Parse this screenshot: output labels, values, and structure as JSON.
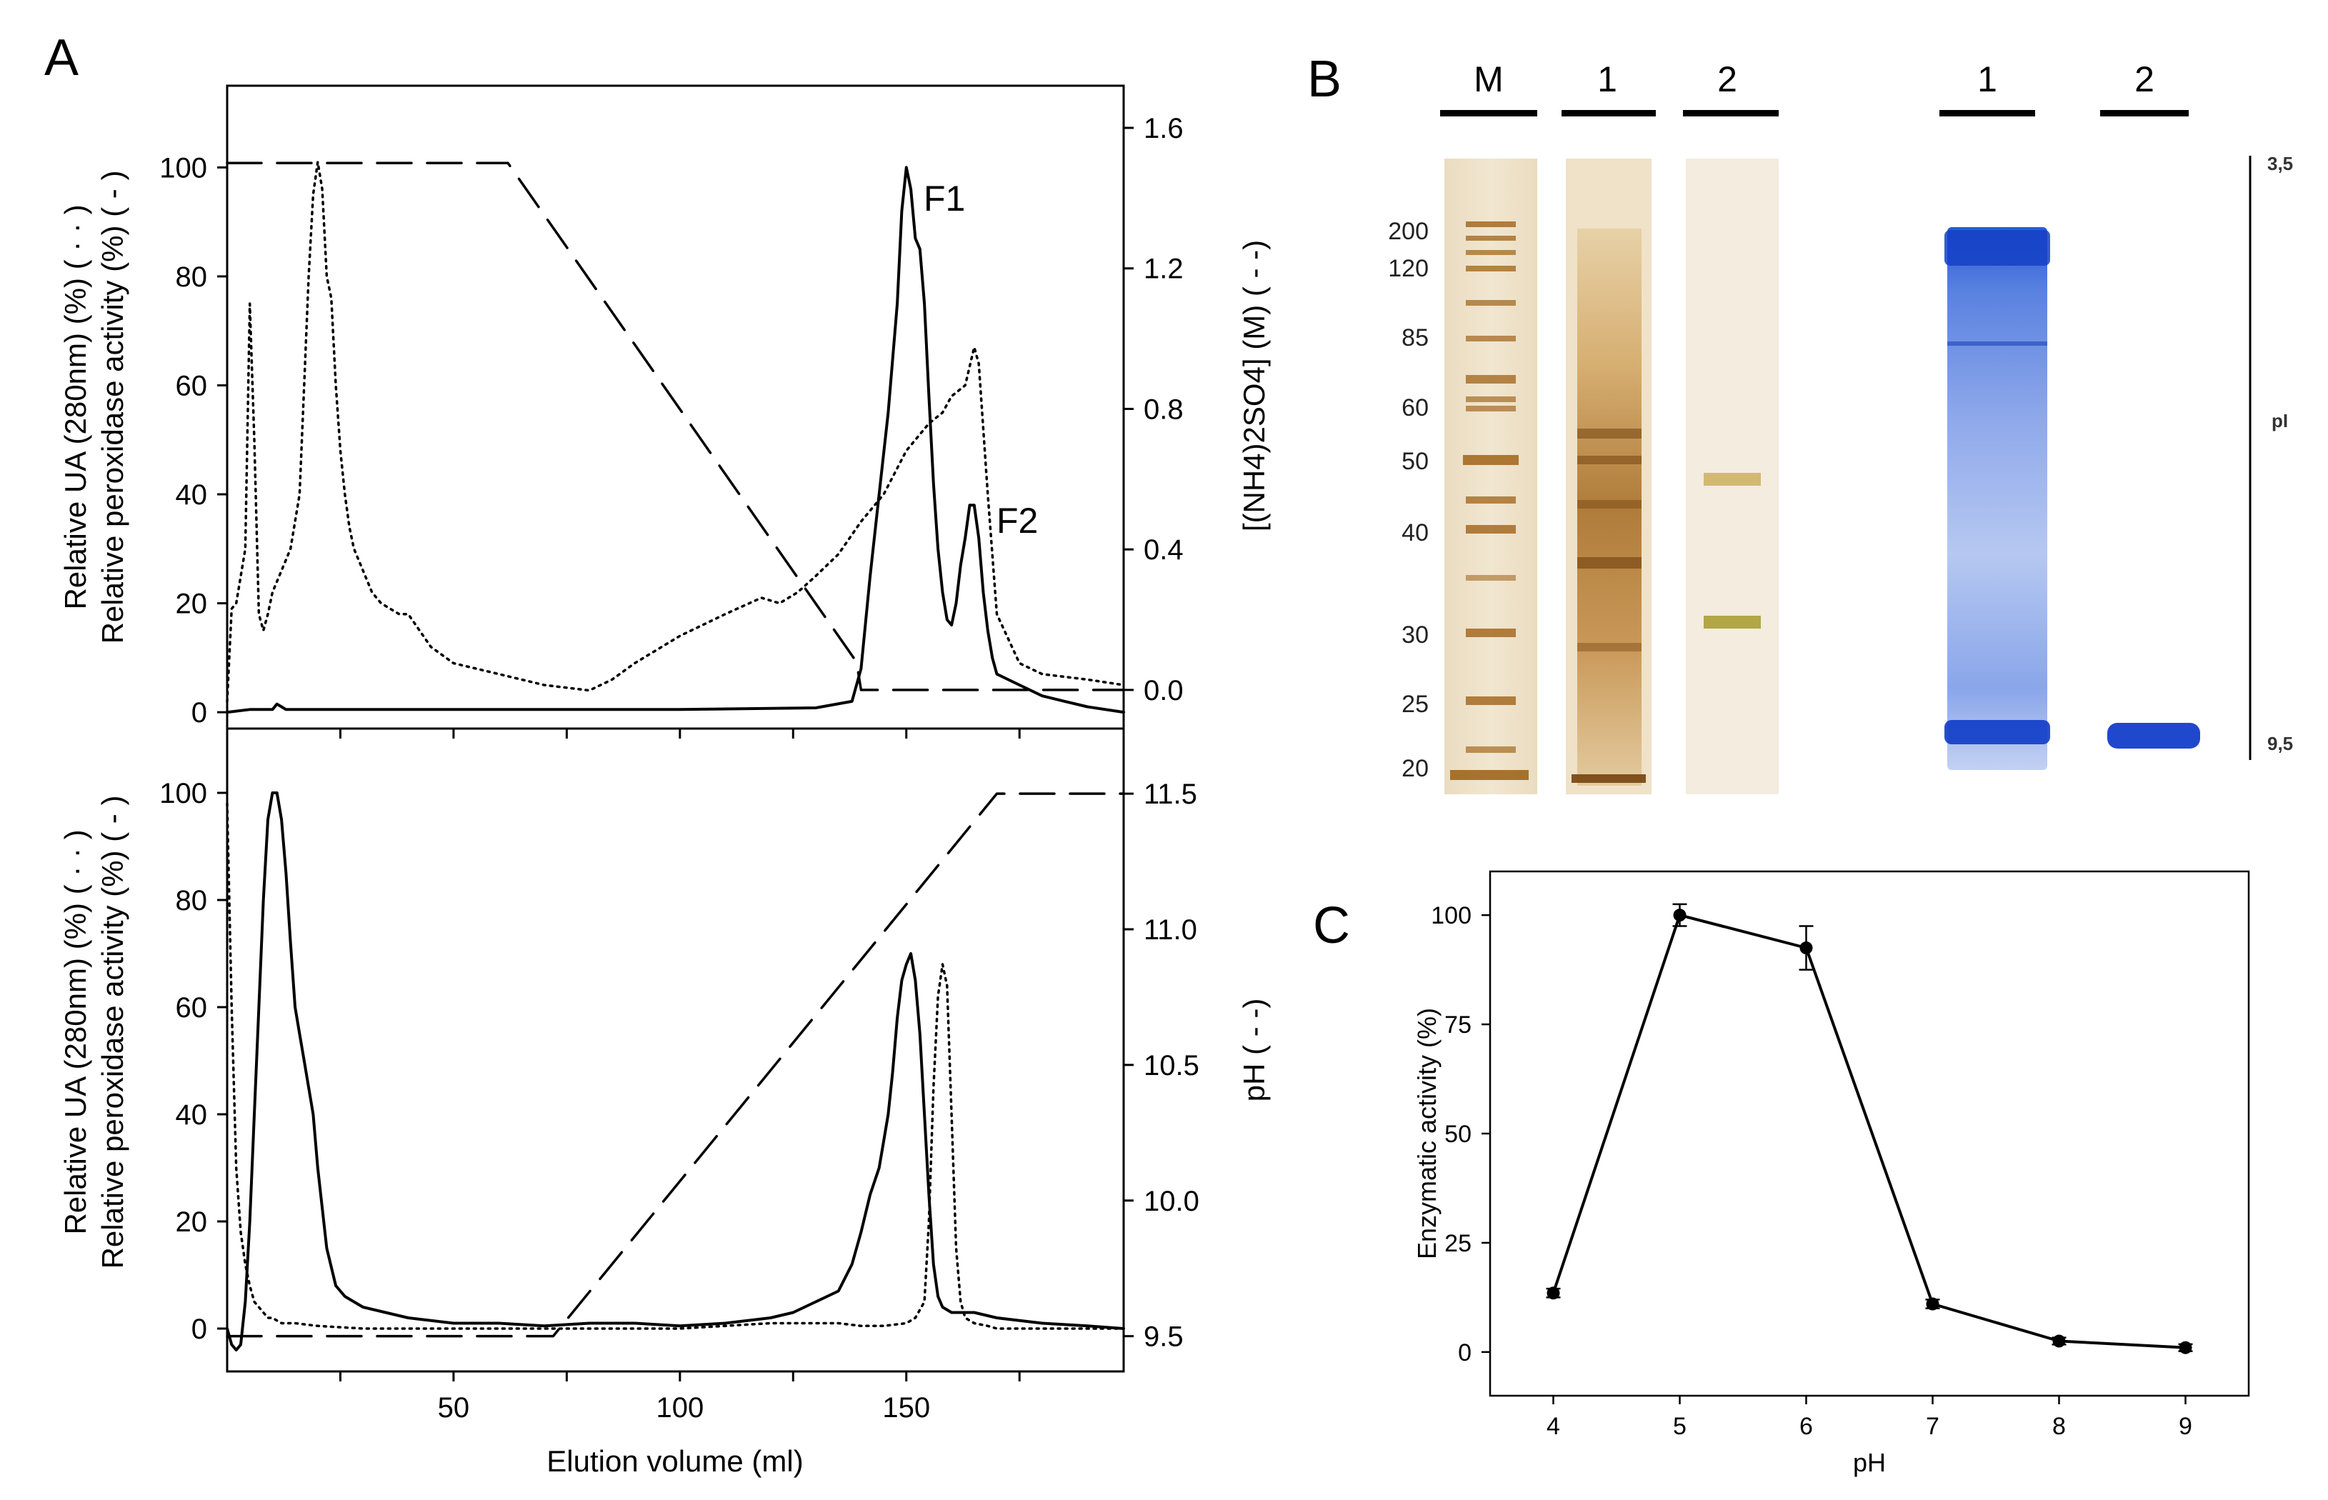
{
  "panel_labels": {
    "A": "A",
    "B": "B",
    "C": "C"
  },
  "colors": {
    "axis": "#000000",
    "silver_stain": "#a87830",
    "silver_bg": "#efe5d2",
    "coomassie": "#1d4fd6",
    "coomassie_light": "#9bb5ec"
  },
  "chart_data": [
    {
      "id": "A_top",
      "type": "line",
      "xlim": [
        0,
        198
      ],
      "ylim": [
        -3,
        115
      ],
      "y2lim": [
        -0.11,
        1.72
      ],
      "xlabel": "",
      "ylabel_line1": "Relative UA (280nm) (%) ( · · )",
      "ylabel_line2": "Relative peroxidase activity (%) ( - )",
      "y2label": "[(NH4)2SO4] (M) ( - -)",
      "y_ticks": [
        "0",
        "20",
        "40",
        "60",
        "80",
        "100"
      ],
      "y2_ticks": [
        "0.0",
        "0.4",
        "0.8",
        "1.2",
        "1.6"
      ],
      "annotations": [
        "F1",
        "F2"
      ],
      "series": [
        {
          "style": "dotted",
          "x": [
            0,
            1,
            2,
            4,
            5,
            6,
            7,
            8,
            9,
            10,
            12,
            14,
            16,
            17,
            18,
            19,
            20,
            21,
            22,
            23,
            24,
            25,
            26,
            27,
            28,
            30,
            32,
            34,
            36,
            38,
            40,
            45,
            50,
            60,
            70,
            80,
            85,
            90,
            100,
            110,
            118,
            122,
            126,
            130,
            135,
            140,
            145,
            150,
            155,
            158,
            160,
            163,
            165,
            166,
            168,
            170,
            175,
            180,
            190,
            198
          ],
          "y": [
            2,
            19,
            20,
            30,
            75,
            50,
            18,
            15,
            18,
            22,
            26,
            30,
            40,
            60,
            80,
            95,
            101,
            96,
            80,
            76,
            60,
            48,
            40,
            34,
            30,
            26,
            22,
            20,
            19,
            18,
            18,
            12,
            9,
            7,
            5,
            4,
            6,
            9,
            14,
            18,
            21,
            20,
            22,
            25,
            29,
            35,
            40,
            48,
            53,
            55,
            58,
            60,
            67,
            64,
            40,
            18,
            9,
            7,
            6,
            5
          ]
        },
        {
          "style": "solid",
          "x": [
            0,
            5,
            10,
            11,
            12,
            13,
            15,
            20,
            50,
            100,
            130,
            138,
            140,
            142,
            144,
            146,
            148,
            149,
            150,
            151,
            152,
            153,
            154,
            155,
            156,
            157,
            158,
            159,
            160,
            161,
            162,
            163,
            164,
            165,
            166,
            167,
            168,
            169,
            170,
            175,
            180,
            185,
            190,
            198
          ],
          "y": [
            0,
            0.5,
            0.5,
            1.5,
            1,
            0.5,
            0.5,
            0.5,
            0.5,
            0.5,
            0.8,
            2,
            8,
            25,
            40,
            55,
            75,
            92,
            100,
            96,
            87,
            85,
            75,
            58,
            42,
            30,
            22,
            17,
            16,
            20,
            27,
            32,
            38,
            38,
            32,
            22,
            15,
            10,
            7,
            5,
            3,
            2,
            1,
            0
          ]
        },
        {
          "style": "dashed",
          "axis": "y2",
          "x": [
            0,
            62,
            139,
            140,
            198
          ],
          "y": [
            1.5,
            1.5,
            0.08,
            0.0,
            0.0
          ]
        }
      ]
    },
    {
      "id": "A_bottom",
      "type": "line",
      "xlim": [
        0,
        198
      ],
      "ylim": [
        -8,
        112
      ],
      "y2lim": [
        9.37,
        11.74
      ],
      "xlabel": "Elution volume (ml)",
      "ylabel_line1": "Relative UA (280nm) (%) ( · · )",
      "ylabel_line2": "Relative peroxidase activity (%) ( - )",
      "y2label": "pH ( - -)",
      "x_ticks": [
        "50",
        "100",
        "150"
      ],
      "y_ticks": [
        "0",
        "20",
        "40",
        "60",
        "80",
        "100"
      ],
      "y2_ticks": [
        "9.5",
        "10.0",
        "10.5",
        "11.0",
        "11.5"
      ],
      "series": [
        {
          "style": "solid",
          "x": [
            0,
            1,
            2,
            3,
            4,
            5,
            6,
            7,
            8,
            9,
            10,
            11,
            12,
            13,
            14,
            15,
            16,
            17,
            18,
            19,
            20,
            22,
            24,
            26,
            28,
            30,
            35,
            40,
            50,
            60,
            70,
            80,
            90,
            100,
            110,
            120,
            125,
            130,
            135,
            138,
            140,
            142,
            144,
            145,
            146,
            147,
            148,
            149,
            150,
            151,
            152,
            153,
            154,
            155,
            156,
            157,
            158,
            160,
            165,
            170,
            180,
            190,
            198
          ],
          "y": [
            0,
            -3,
            -4,
            -3,
            5,
            20,
            40,
            60,
            80,
            95,
            100,
            100,
            95,
            85,
            72,
            60,
            55,
            50,
            45,
            40,
            30,
            15,
            8,
            6,
            5,
            4,
            3,
            2,
            1,
            1,
            0.5,
            1,
            1,
            0.5,
            1,
            2,
            3,
            5,
            7,
            12,
            18,
            25,
            30,
            35,
            40,
            48,
            58,
            65,
            68,
            70,
            65,
            55,
            40,
            25,
            12,
            6,
            4,
            3,
            3,
            2,
            1,
            0.5,
            0
          ]
        },
        {
          "style": "dotted",
          "x": [
            0,
            1,
            2,
            3,
            4,
            5,
            6,
            7,
            8,
            9,
            10,
            12,
            15,
            20,
            30,
            50,
            80,
            100,
            120,
            130,
            135,
            140,
            145,
            150,
            152,
            154,
            155,
            156,
            157,
            158,
            159,
            160,
            161,
            162,
            163,
            165,
            168,
            170,
            175,
            180,
            190,
            198
          ],
          "y": [
            98,
            60,
            30,
            18,
            12,
            8,
            5,
            4,
            3,
            2,
            2,
            1,
            1,
            0.5,
            0,
            0,
            0,
            0,
            1,
            1,
            1,
            0.5,
            0.5,
            1,
            2,
            5,
            20,
            45,
            62,
            68,
            64,
            40,
            15,
            5,
            2,
            1,
            0.5,
            0,
            0,
            0,
            0,
            0
          ]
        },
        {
          "style": "dashed",
          "axis": "y2",
          "x": [
            0,
            72,
            170,
            198
          ],
          "y": [
            9.5,
            9.5,
            11.5,
            11.5
          ]
        }
      ]
    },
    {
      "id": "C",
      "type": "line",
      "title": "",
      "xlabel": "pH",
      "ylabel": "Enzymatic activity (%)",
      "x": [
        4,
        5,
        6,
        7,
        8,
        9
      ],
      "y": [
        13.5,
        100,
        92.5,
        11,
        2.5,
        1
      ],
      "errors": [
        1,
        2.5,
        5,
        1,
        0.8,
        0.8
      ],
      "xlim": [
        3.5,
        9.5
      ],
      "ylim": [
        -10,
        110
      ],
      "x_ticks": [
        "4",
        "5",
        "6",
        "7",
        "8",
        "9"
      ],
      "y_ticks": [
        "0",
        "25",
        "50",
        "75",
        "100"
      ]
    }
  ],
  "gels": {
    "sds_lane_labels": [
      "M",
      "1",
      "2"
    ],
    "ief_lane_labels": [
      "1",
      "2"
    ],
    "mw_markers": [
      "200",
      "120",
      "85",
      "60",
      "50",
      "40",
      "30",
      "25",
      "20"
    ],
    "pi_top": "3,5",
    "pi_label": "pI",
    "pi_bottom": "9,5"
  }
}
